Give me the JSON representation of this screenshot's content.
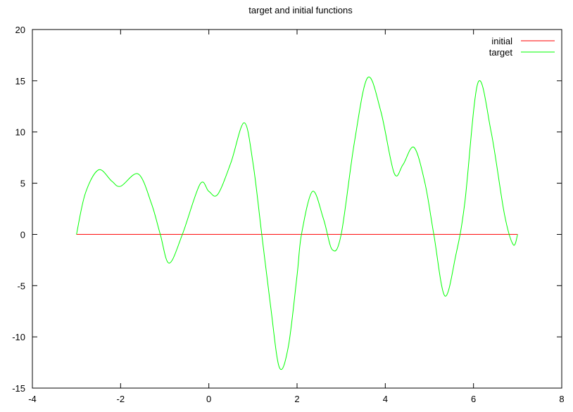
{
  "chart_data": {
    "type": "line",
    "title": "target and initial functions",
    "xlabel": "",
    "ylabel": "",
    "xlim": [
      -4,
      8
    ],
    "ylim": [
      -15,
      20
    ],
    "x_ticks": [
      -4,
      -2,
      0,
      2,
      4,
      6,
      8
    ],
    "y_ticks": [
      -15,
      -10,
      -5,
      0,
      5,
      10,
      15,
      20
    ],
    "grid": false,
    "legend_position": "top-right",
    "series": [
      {
        "name": "initial",
        "color": "#ff0000",
        "x": [
          -3,
          7
        ],
        "y": [
          0,
          0
        ]
      },
      {
        "name": "target",
        "color": "#00ff00",
        "x": [
          -3,
          -2.8,
          -2.5,
          -2.2,
          -2,
          -1.6,
          -1.3,
          -1.1,
          -0.9,
          -0.6,
          -0.2,
          0,
          0.2,
          0.5,
          0.8,
          1,
          1.2,
          1.4,
          1.6,
          1.8,
          2,
          2.1,
          2.35,
          2.6,
          2.8,
          3,
          3.3,
          3.6,
          3.9,
          4.2,
          4.4,
          4.65,
          4.9,
          5.1,
          5.35,
          5.6,
          5.8,
          6.1,
          6.4,
          6.7,
          6.9,
          7
        ],
        "y": [
          0,
          4,
          6.3,
          5.2,
          4.7,
          5.9,
          3,
          0,
          -2.8,
          0,
          4.9,
          4.2,
          3.9,
          7,
          10.9,
          7,
          0,
          -7,
          -13,
          -11,
          -4,
          0,
          4.2,
          1.5,
          -1.5,
          0,
          9,
          15.3,
          12,
          6,
          6.8,
          8.5,
          5,
          0,
          -6,
          -2,
          3,
          14.8,
          10,
          2,
          -1,
          0
        ]
      }
    ]
  }
}
